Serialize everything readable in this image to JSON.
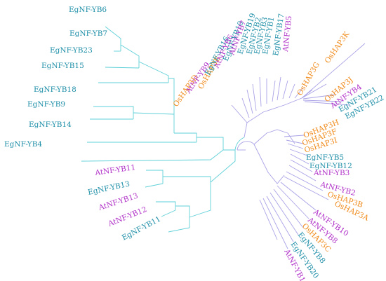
{
  "colors": {
    "egnf": "#1f8fa8",
    "atnf": "#b030c8",
    "oshap": "#f08a1a",
    "branch_cyan": "#5fd0d8",
    "branch_purple": "#a9a2e6"
  },
  "left_clade": {
    "labels": [
      {
        "text": "EgNF-YB6",
        "group": "egnf"
      },
      {
        "text": "EgNF-YB7",
        "group": "egnf"
      },
      {
        "text": "EgNF-YB23",
        "group": "egnf"
      },
      {
        "text": "EgNF-YB15",
        "group": "egnf"
      },
      {
        "text": "EgNF-YB18",
        "group": "egnf"
      },
      {
        "text": "EgNF-YB9",
        "group": "egnf"
      },
      {
        "text": "EgNF-YB14",
        "group": "egnf"
      },
      {
        "text": "EgNF-YB4",
        "group": "egnf"
      },
      {
        "text": "AtNF-YB11",
        "group": "atnf"
      },
      {
        "text": "EgNF-YB13",
        "group": "egnf"
      },
      {
        "text": "AtNF-YB13",
        "group": "atnf"
      },
      {
        "text": "AtNF-YB12",
        "group": "atnf"
      },
      {
        "text": "EgNF-YB11",
        "group": "egnf"
      }
    ]
  },
  "right_clade": {
    "labels": [
      {
        "text": "OsHAP3D",
        "group": "oshap"
      },
      {
        "text": "AtNF-YB9",
        "group": "atnf"
      },
      {
        "text": "OsHAP3E",
        "group": "oshap"
      },
      {
        "text": "EgNF-YB16",
        "group": "egnf"
      },
      {
        "text": "AtNF-YB6",
        "group": "atnf"
      },
      {
        "text": "EgNF-YB10",
        "group": "egnf"
      },
      {
        "text": "AtNF-YB7",
        "group": "atnf"
      },
      {
        "text": "EgNF-YB19",
        "group": "egnf"
      },
      {
        "text": "EgNF-YB2",
        "group": "egnf"
      },
      {
        "text": "EgNF-YB3",
        "group": "egnf"
      },
      {
        "text": "EgNF-YB1",
        "group": "egnf"
      },
      {
        "text": "EgNF-YB17",
        "group": "egnf"
      },
      {
        "text": "AtNF-YB5",
        "group": "atnf"
      },
      {
        "text": "OsHAP3G",
        "group": "oshap"
      },
      {
        "text": "OsHAP3K",
        "group": "oshap"
      },
      {
        "text": "OsHAP3J",
        "group": "oshap"
      },
      {
        "text": "AtNF-YB4",
        "group": "atnf"
      },
      {
        "text": "EgNF-YB21",
        "group": "egnf"
      },
      {
        "text": "EgNF-YB22",
        "group": "egnf"
      },
      {
        "text": "OsHAP3H",
        "group": "oshap"
      },
      {
        "text": "OsHAP3F",
        "group": "oshap"
      },
      {
        "text": "OsHAP3I",
        "group": "oshap"
      },
      {
        "text": "EgNF-YB5",
        "group": "egnf"
      },
      {
        "text": "EgNF-YB12",
        "group": "egnf"
      },
      {
        "text": "AtNF-YB3",
        "group": "atnf"
      },
      {
        "text": "AtNF-YB2",
        "group": "atnf"
      },
      {
        "text": "OsHAP3B",
        "group": "oshap"
      },
      {
        "text": "OsHAP3A",
        "group": "oshap"
      },
      {
        "text": "AtNF-YB10",
        "group": "atnf"
      },
      {
        "text": "AtNF-YB8",
        "group": "atnf"
      },
      {
        "text": "OsHAP3C",
        "group": "oshap"
      },
      {
        "text": "EgNF-YB8",
        "group": "egnf"
      },
      {
        "text": "EgNF-YB20",
        "group": "egnf"
      },
      {
        "text": "AtNF-YB1",
        "group": "atnf"
      }
    ]
  }
}
